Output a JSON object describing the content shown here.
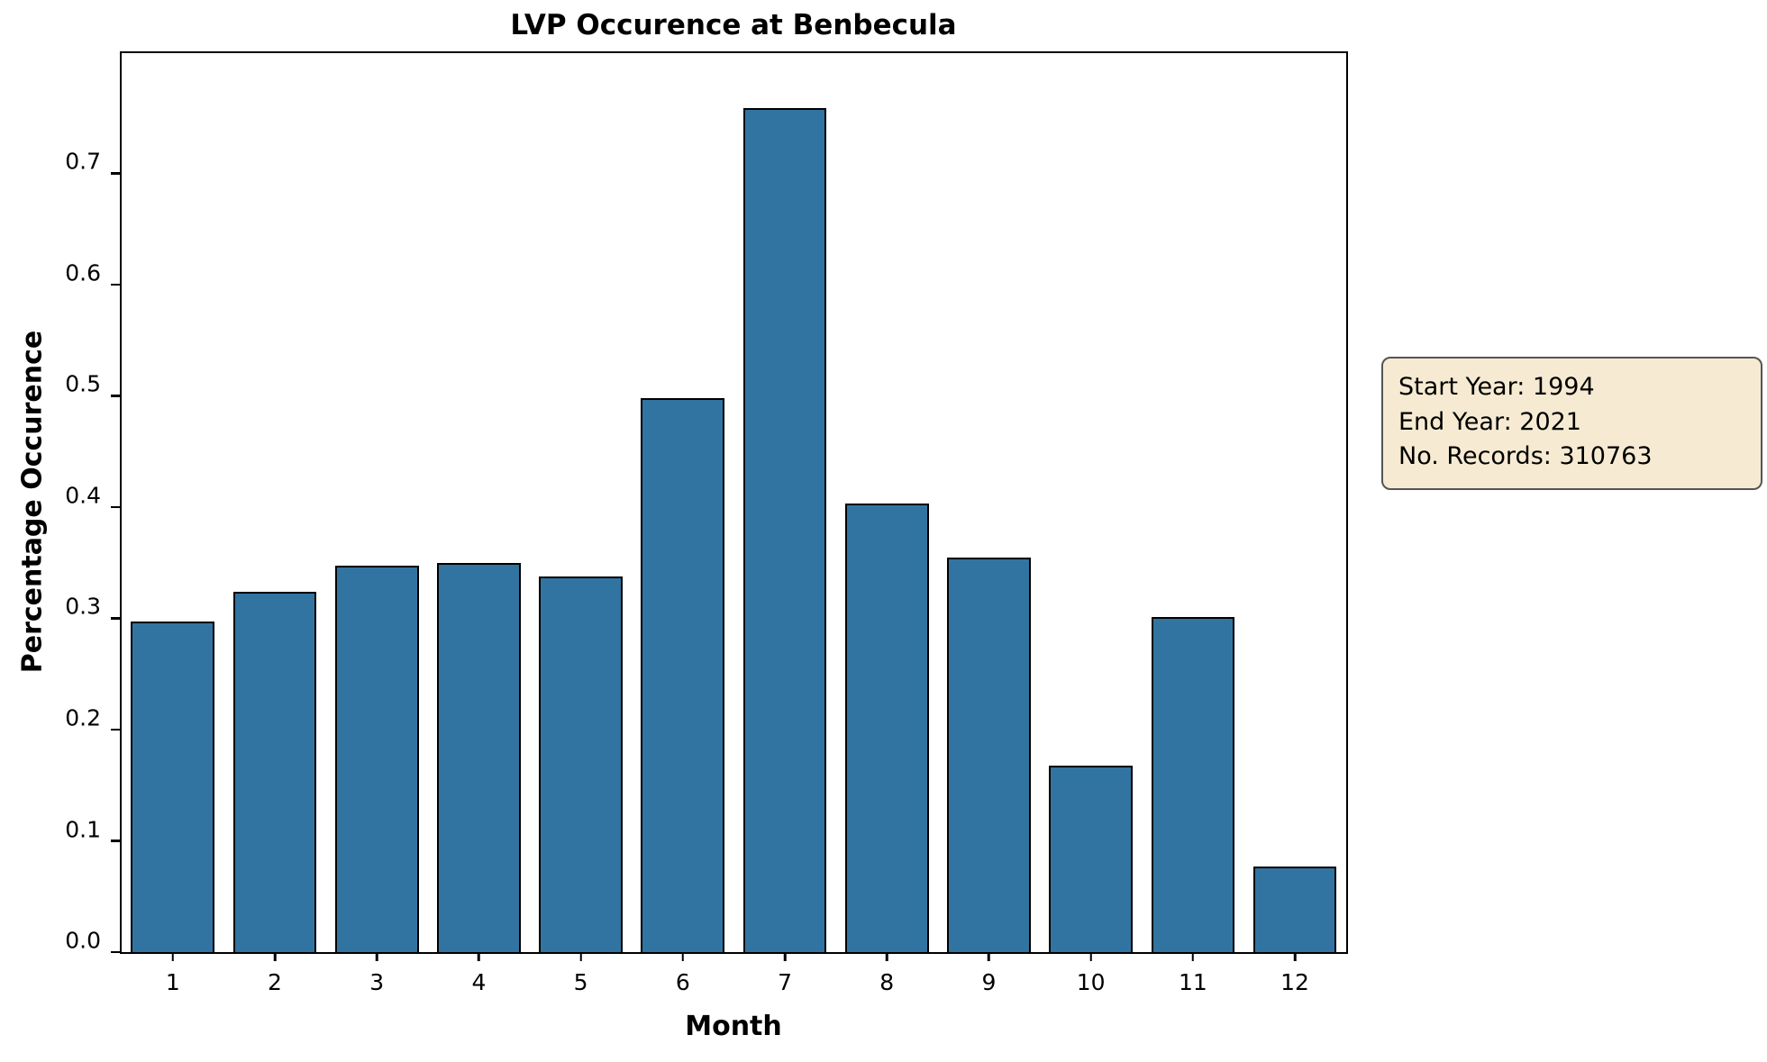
{
  "chart_data": {
    "type": "bar",
    "title": "LVP Occurence at Benbecula",
    "xlabel": "Month",
    "ylabel": "Percentage Occurence",
    "categories": [
      "1",
      "2",
      "3",
      "4",
      "5",
      "6",
      "7",
      "8",
      "9",
      "10",
      "11",
      "12"
    ],
    "values": [
      0.297,
      0.324,
      0.347,
      0.35,
      0.338,
      0.498,
      0.759,
      0.403,
      0.355,
      0.168,
      0.301,
      0.077
    ],
    "yticks": [
      0.0,
      0.1,
      0.2,
      0.3,
      0.4,
      0.5,
      0.6,
      0.7
    ],
    "ytick_labels": [
      "0.0",
      "0.1",
      "0.2",
      "0.3",
      "0.4",
      "0.5",
      "0.6",
      "0.7"
    ],
    "ylim": [
      0,
      0.808
    ],
    "grid": false,
    "legend_position": "none",
    "bar_color": "#3274A1",
    "bar_edge_color": "#000000"
  },
  "annotation": {
    "lines": [
      "Start Year: 1994",
      "End Year: 2021",
      "No. Records: 310763"
    ],
    "background": "#F6EBD2",
    "border_color": "#555555"
  }
}
